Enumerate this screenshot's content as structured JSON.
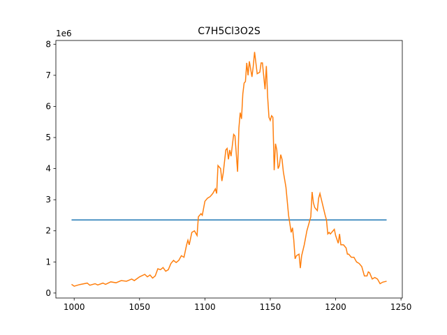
{
  "chart_data": {
    "type": "line",
    "title": "C7H5Cl3O2S",
    "y_offset_label": "1e6",
    "xlim": [
      986,
      1251
    ],
    "xticks": [
      1000,
      1050,
      1100,
      1150,
      1200,
      1250
    ],
    "ylim": [
      -0.16,
      8.12
    ],
    "yticks": [
      0,
      1,
      2,
      3,
      4,
      5,
      6,
      7,
      8
    ],
    "series": [
      {
        "color": "#1f77b4",
        "x": [
          998,
          1239
        ],
        "values": [
          2.35,
          2.35
        ]
      },
      {
        "color": "#ff7f0e",
        "x": [
          998,
          1000,
          1004,
          1010,
          1012,
          1016,
          1018,
          1022,
          1024,
          1028,
          1032,
          1036,
          1040,
          1044,
          1046,
          1050,
          1054,
          1056,
          1058,
          1060,
          1062,
          1064,
          1066,
          1068,
          1070,
          1072,
          1074,
          1076,
          1078,
          1080,
          1082,
          1084,
          1086,
          1087,
          1088,
          1090,
          1092,
          1094,
          1095,
          1097,
          1098,
          1100,
          1102,
          1104,
          1106,
          1108,
          1109,
          1110,
          1112,
          1113,
          1114,
          1116,
          1117,
          1118,
          1119,
          1120,
          1122,
          1123,
          1125,
          1126,
          1127,
          1128,
          1129,
          1130,
          1131,
          1132,
          1133,
          1134,
          1135,
          1136,
          1137,
          1138,
          1139,
          1140,
          1142,
          1143,
          1144,
          1146,
          1147,
          1148,
          1149,
          1150,
          1151,
          1152,
          1153,
          1154,
          1155,
          1156,
          1157,
          1158,
          1159,
          1160,
          1162,
          1164,
          1166,
          1167,
          1168,
          1169,
          1170,
          1172,
          1173,
          1174,
          1176,
          1178,
          1180,
          1181,
          1182,
          1183,
          1184,
          1186,
          1187,
          1188,
          1190,
          1192,
          1193,
          1194,
          1195,
          1196,
          1198,
          1199,
          1200,
          1202,
          1203,
          1204,
          1206,
          1208,
          1209,
          1210,
          1212,
          1214,
          1216,
          1218,
          1220,
          1222,
          1224,
          1225,
          1226,
          1228,
          1230,
          1232,
          1234,
          1236,
          1239
        ],
        "values": [
          0.28,
          0.22,
          0.27,
          0.32,
          0.25,
          0.3,
          0.26,
          0.32,
          0.28,
          0.36,
          0.33,
          0.4,
          0.38,
          0.45,
          0.4,
          0.52,
          0.6,
          0.52,
          0.58,
          0.48,
          0.55,
          0.78,
          0.75,
          0.82,
          0.7,
          0.75,
          0.95,
          1.05,
          0.98,
          1.05,
          1.2,
          1.15,
          1.55,
          1.7,
          1.55,
          1.95,
          2.0,
          1.85,
          2.45,
          2.55,
          2.5,
          2.95,
          3.05,
          3.1,
          3.2,
          3.35,
          3.2,
          4.1,
          4.0,
          3.6,
          3.85,
          4.6,
          4.65,
          4.3,
          4.6,
          4.4,
          5.1,
          5.05,
          3.9,
          5.3,
          5.8,
          5.6,
          6.4,
          6.75,
          6.8,
          7.4,
          7.0,
          7.45,
          7.2,
          6.95,
          7.3,
          7.75,
          7.4,
          7.05,
          7.1,
          7.4,
          7.4,
          6.55,
          7.3,
          6.3,
          5.65,
          5.55,
          5.7,
          5.65,
          3.95,
          4.8,
          4.6,
          4.0,
          4.1,
          4.45,
          4.3,
          3.9,
          3.4,
          2.5,
          1.95,
          2.1,
          1.7,
          1.1,
          1.2,
          1.25,
          0.8,
          1.2,
          1.55,
          2.0,
          2.3,
          2.45,
          3.25,
          2.9,
          2.75,
          2.65,
          3.05,
          3.2,
          2.85,
          2.5,
          2.35,
          1.9,
          1.95,
          1.9,
          2.0,
          2.05,
          1.85,
          1.6,
          1.9,
          1.55,
          1.55,
          1.45,
          1.25,
          1.25,
          1.15,
          1.15,
          1.0,
          0.95,
          0.85,
          0.55,
          0.55,
          0.68,
          0.65,
          0.45,
          0.5,
          0.45,
          0.3,
          0.35,
          0.38
        ]
      }
    ]
  }
}
